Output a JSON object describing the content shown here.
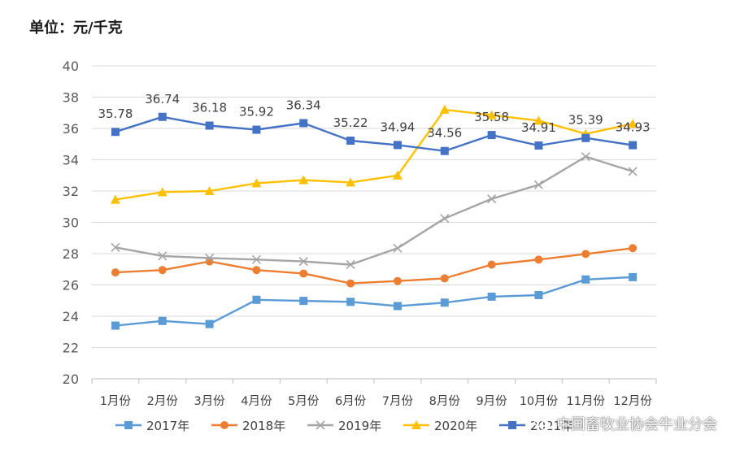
{
  "unit_label": "单位：元/千克",
  "watermark": "中国畜牧业协会牛业分会",
  "chart_data": {
    "type": "line",
    "title": "",
    "ylabel": "单位：元/千克",
    "ylim": [
      20,
      40
    ],
    "yticks": [
      20,
      22,
      24,
      26,
      28,
      30,
      32,
      34,
      36,
      38,
      40
    ],
    "categories": [
      "1月份",
      "2月份",
      "3月份",
      "4月份",
      "5月份",
      "6月份",
      "7月份",
      "8月份",
      "9月份",
      "10月份",
      "11月份",
      "12月份"
    ],
    "grid": true,
    "legend_position": "bottom",
    "series": [
      {
        "name": "2017年",
        "color": "#5b9bd5",
        "marker": "square",
        "values": [
          23.4,
          23.7,
          23.5,
          25.05,
          24.98,
          24.92,
          24.65,
          24.87,
          25.25,
          25.35,
          26.35,
          26.5
        ]
      },
      {
        "name": "2018年",
        "color": "#ed7d31",
        "marker": "circle",
        "values": [
          26.8,
          26.95,
          27.5,
          26.95,
          26.73,
          26.1,
          26.25,
          26.42,
          27.3,
          27.62,
          27.98,
          28.35
        ]
      },
      {
        "name": "2019年",
        "color": "#a5a5a5",
        "marker": "x",
        "values": [
          28.4,
          27.85,
          27.72,
          27.62,
          27.5,
          27.3,
          28.35,
          30.25,
          31.5,
          32.4,
          34.2,
          33.25
        ]
      },
      {
        "name": "2020年",
        "color": "#ffc000",
        "marker": "triangle",
        "values": [
          31.45,
          31.93,
          32.0,
          32.5,
          32.7,
          32.55,
          33.0,
          37.2,
          36.85,
          36.5,
          35.65,
          36.3
        ]
      },
      {
        "name": "2021年",
        "color": "#4472c4",
        "marker": "square",
        "values": [
          35.78,
          36.74,
          36.18,
          35.92,
          36.34,
          35.22,
          34.94,
          34.56,
          35.58,
          34.91,
          35.39,
          34.93
        ],
        "data_labels": [
          "35.78",
          "36.74",
          "36.18",
          "35.92",
          "36.34",
          "35.22",
          "34.94",
          "34.56",
          "35.58",
          "34.91",
          "35.39",
          "34.93"
        ]
      }
    ]
  }
}
